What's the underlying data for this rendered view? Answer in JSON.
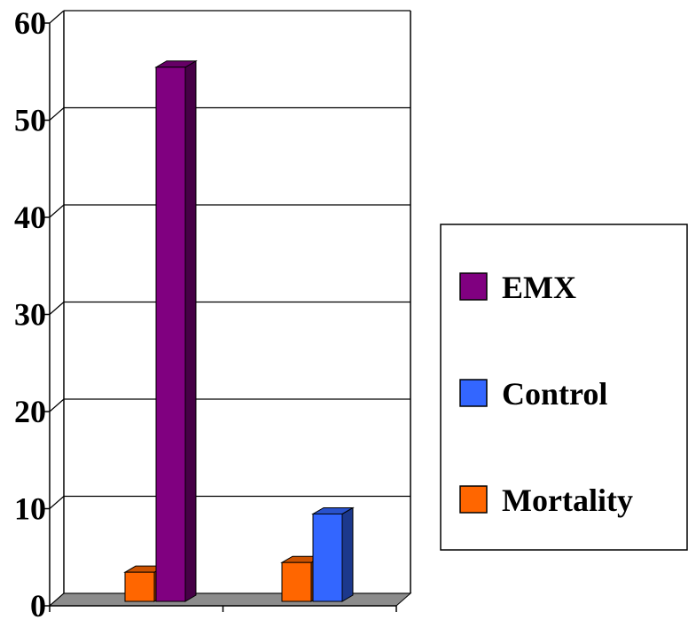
{
  "chart_data": {
    "type": "bar",
    "style": "3d-clustered-column",
    "categories": [
      "",
      ""
    ],
    "series": [
      {
        "name": "Mortality",
        "color": "#FF6600",
        "values": [
          3,
          4
        ]
      },
      {
        "name": "EMX",
        "color": "#800080",
        "values": [
          55,
          null
        ]
      },
      {
        "name": "Control",
        "color": "#3366FF",
        "values": [
          null,
          9
        ]
      }
    ],
    "yticks": [
      "0",
      "10",
      "20",
      "30",
      "40",
      "50",
      "60"
    ],
    "ylim": [
      0,
      60
    ],
    "ystep": 10,
    "grid": true,
    "legend": {
      "position": "right",
      "items": [
        "EMX",
        "Control",
        "Mortality"
      ]
    }
  }
}
